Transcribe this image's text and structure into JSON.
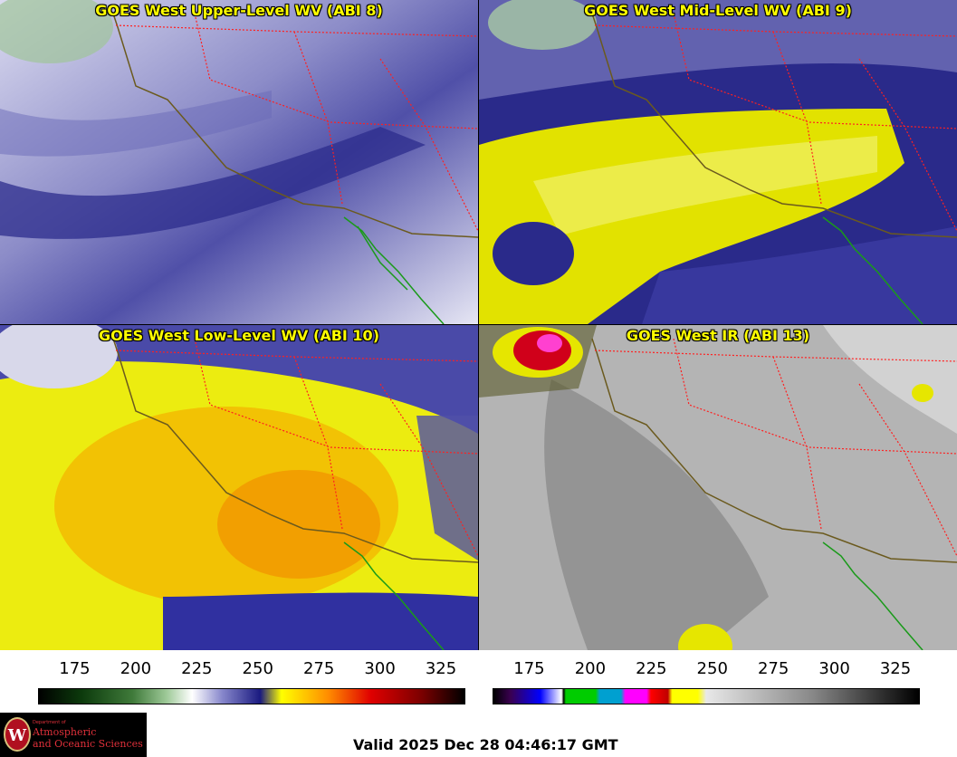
{
  "panels": {
    "upper": {
      "title": "GOES West Upper-Level WV (ABI 8)"
    },
    "mid": {
      "title": "GOES West Mid-Level WV (ABI 9)"
    },
    "low": {
      "title": "GOES West Low-Level WV (ABI 10)"
    },
    "ir": {
      "title": "GOES West IR (ABI 13)"
    }
  },
  "colorbars": {
    "wv": {
      "ticks": [
        "175",
        "200",
        "225",
        "250",
        "275",
        "300",
        "325"
      ],
      "range": [
        160,
        335
      ]
    },
    "ir": {
      "ticks": [
        "175",
        "200",
        "225",
        "250",
        "275",
        "300",
        "325"
      ],
      "range": [
        160,
        335
      ]
    }
  },
  "logo": {
    "seal_letter": "W",
    "dept": "Department of",
    "line1": "Atmospheric",
    "line2": "and Oceanic Sciences"
  },
  "valid_text": "Valid 2025 Dec 28 04:46:17 GMT",
  "colors": {
    "title": "#ffff00",
    "coast": "#6b5a1e",
    "baja_coast": "#1a9a1a",
    "state_border": "#ff2020"
  }
}
